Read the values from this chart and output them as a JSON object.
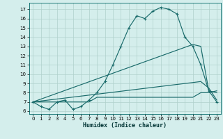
{
  "xlabel": "Humidex (Indice chaleur)",
  "xlim": [
    -0.5,
    23.5
  ],
  "ylim": [
    5.7,
    17.7
  ],
  "xticks": [
    0,
    1,
    2,
    3,
    4,
    5,
    6,
    7,
    8,
    9,
    10,
    11,
    12,
    13,
    14,
    15,
    16,
    17,
    18,
    19,
    20,
    21,
    22,
    23
  ],
  "yticks": [
    6,
    7,
    8,
    9,
    10,
    11,
    12,
    13,
    14,
    15,
    16,
    17
  ],
  "background_color": "#d4eeec",
  "grid_color": "#b0d0cc",
  "line_color": "#1a6b6b",
  "line1_x": [
    0,
    1,
    2,
    3,
    4,
    5,
    6,
    7,
    8,
    9,
    10,
    11,
    12,
    13,
    14,
    15,
    16,
    17,
    18,
    19,
    20,
    21,
    22,
    23
  ],
  "line1_y": [
    7.0,
    6.5,
    6.2,
    7.0,
    7.2,
    6.2,
    6.5,
    7.2,
    8.0,
    9.2,
    11.0,
    13.0,
    15.0,
    16.3,
    16.0,
    16.8,
    17.2,
    17.0,
    16.5,
    14.0,
    13.0,
    11.0,
    8.2,
    7.0
  ],
  "line2_x": [
    0,
    1,
    2,
    3,
    4,
    5,
    6,
    7,
    8,
    9,
    10,
    11,
    12,
    13,
    14,
    15,
    16,
    17,
    18,
    19,
    20,
    21,
    22,
    23
  ],
  "line2_y": [
    7.0,
    7.0,
    7.0,
    7.0,
    7.0,
    7.0,
    7.0,
    7.0,
    7.5,
    7.5,
    7.5,
    7.5,
    7.5,
    7.5,
    7.5,
    7.5,
    7.5,
    7.5,
    7.5,
    7.5,
    7.5,
    8.0,
    8.0,
    8.2
  ],
  "line3_x": [
    0,
    20,
    21,
    22,
    23
  ],
  "line3_y": [
    7.0,
    13.2,
    13.0,
    8.2,
    8.0
  ],
  "line4_x": [
    0,
    21,
    22,
    23
  ],
  "line4_y": [
    7.0,
    9.2,
    8.5,
    7.2
  ]
}
